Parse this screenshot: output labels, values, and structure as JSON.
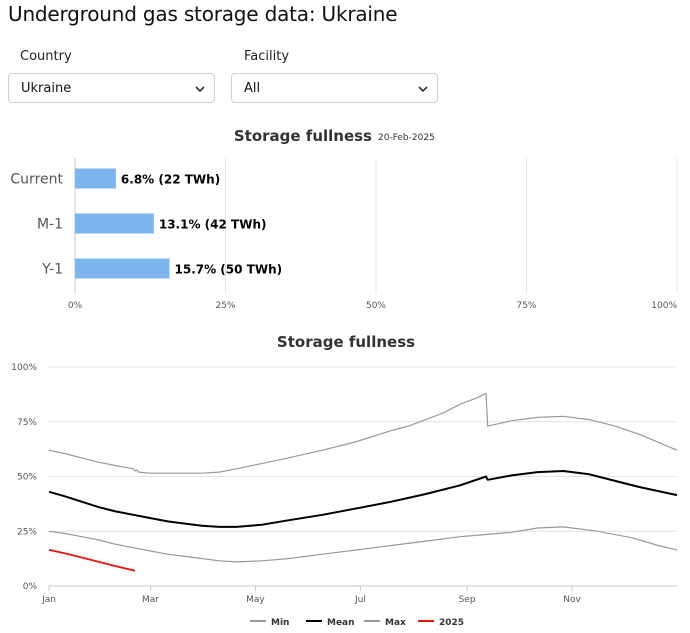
{
  "page": {
    "title": "Underground gas storage data: Ukraine"
  },
  "filters": {
    "country_label": "Country",
    "country_value": "Ukraine",
    "facility_label": "Facility",
    "facility_value": "All"
  },
  "chart_data": [
    {
      "type": "bar",
      "orientation": "horizontal",
      "title": "Storage fullness",
      "subtitle": "20-Feb-2025",
      "categories": [
        "Current",
        "M-1",
        "Y-1"
      ],
      "values": [
        6.8,
        13.1,
        15.7
      ],
      "data_labels": [
        "6.8% (22 TWh)",
        "13.1% (42 TWh)",
        "15.7% (50 TWh)"
      ],
      "xlim": [
        0,
        100
      ],
      "x_ticks": [
        0,
        25,
        50,
        75,
        100
      ],
      "x_tick_labels": [
        "0%",
        "25%",
        "50%",
        "75%",
        "100%"
      ],
      "grid": true,
      "bar_color": "#7cb5ec"
    },
    {
      "type": "line",
      "title": "Storage fullness",
      "x_unit": "day of year",
      "x_ticks": [
        1,
        60,
        121,
        182,
        244,
        305
      ],
      "x_tick_labels": [
        "Jan",
        "Mar",
        "May",
        "Jul",
        "Sep",
        "Nov"
      ],
      "xlim": [
        1,
        366
      ],
      "ylim": [
        0,
        100
      ],
      "y_ticks": [
        0,
        25,
        50,
        75,
        100
      ],
      "y_tick_labels": [
        "0%",
        "25%",
        "50%",
        "75%",
        "100%"
      ],
      "grid": true,
      "legend_position": "bottom-center",
      "series": [
        {
          "name": "Min",
          "color": "#999999",
          "width": 1.2,
          "x": [
            1,
            10,
            20,
            30,
            40,
            50,
            60,
            70,
            80,
            90,
            100,
            110,
            125,
            140,
            160,
            180,
            200,
            220,
            240,
            255,
            270,
            285,
            300,
            320,
            340,
            355,
            366
          ],
          "y": [
            25,
            24,
            22.5,
            21,
            19,
            17.5,
            16,
            14.5,
            13.5,
            12.5,
            11.5,
            11,
            11.5,
            12.5,
            14.5,
            16.5,
            18.5,
            20.5,
            22.5,
            23.5,
            24.5,
            26.5,
            27,
            25,
            22,
            18.5,
            16.5
          ]
        },
        {
          "name": "Mean",
          "color": "#000000",
          "width": 2,
          "x": [
            1,
            10,
            20,
            30,
            40,
            50,
            60,
            70,
            80,
            90,
            100,
            110,
            125,
            140,
            160,
            180,
            200,
            220,
            240,
            255,
            256,
            270,
            285,
            300,
            315,
            330,
            345,
            366
          ],
          "y": [
            43,
            41,
            38.5,
            36,
            34,
            32.5,
            31,
            29.5,
            28.5,
            27.5,
            27,
            27,
            28,
            30,
            32.5,
            35.5,
            38.5,
            42,
            46,
            50,
            48.5,
            50.5,
            52,
            52.5,
            51,
            48,
            45,
            41.5
          ]
        },
        {
          "name": "Max",
          "color": "#999999",
          "width": 1.2,
          "x": [
            1,
            10,
            20,
            30,
            40,
            50,
            51,
            52,
            53,
            60,
            75,
            90,
            100,
            110,
            125,
            140,
            160,
            180,
            200,
            210,
            220,
            230,
            240,
            250,
            255,
            256,
            270,
            285,
            300,
            315,
            330,
            345,
            366
          ],
          "y": [
            62,
            60.5,
            58.5,
            56.5,
            55,
            53.5,
            52.5,
            53,
            52,
            51.5,
            51.5,
            51.5,
            52,
            53.5,
            56,
            58.5,
            62,
            66,
            71,
            73,
            76,
            79,
            83,
            86,
            88,
            73,
            75.5,
            77,
            77.5,
            76,
            73,
            69,
            62
          ]
        },
        {
          "name": "2025",
          "color": "#e8130f",
          "width": 1.8,
          "x": [
            1,
            10,
            20,
            30,
            40,
            51
          ],
          "y": [
            16.5,
            15,
            13,
            11,
            9,
            7
          ]
        }
      ]
    }
  ]
}
